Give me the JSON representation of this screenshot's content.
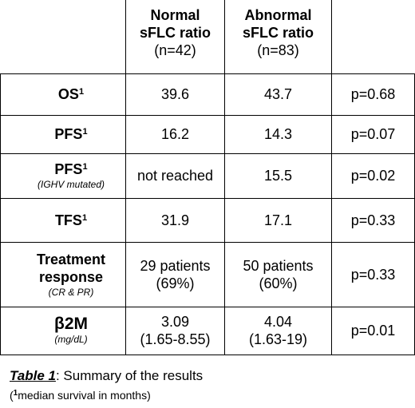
{
  "table": {
    "columns": [
      {
        "title_line1": "Normal",
        "title_line2": "sFLC ratio",
        "n": "(n=42)"
      },
      {
        "title_line1": "Abnormal",
        "title_line2": "sFLC ratio",
        "n": "(n=83)"
      }
    ],
    "rows": [
      {
        "label": "OS",
        "sup": "1",
        "note": "",
        "normal": "39.6",
        "abnormal": "43.7",
        "p": "p=0.68"
      },
      {
        "label": "PFS",
        "sup": "1",
        "note": "",
        "normal": "16.2",
        "abnormal": "14.3",
        "p": "p=0.07"
      },
      {
        "label": "PFS",
        "sup": "1",
        "note": "(IGHV mutated)",
        "normal": "not reached",
        "abnormal": "15.5",
        "p": "p=0.02"
      },
      {
        "label": "TFS",
        "sup": "1",
        "note": "",
        "normal": "31.9",
        "abnormal": "17.1",
        "p": "p=0.33"
      },
      {
        "label_line1": "Treatment",
        "label_line2": "response",
        "note": "(CR & PR)",
        "normal_line1": "29 patients",
        "normal_line2": "(69%)",
        "abnormal_line1": "50 patients",
        "abnormal_line2": "(60%)",
        "p": "p=0.33"
      },
      {
        "label": "β2M",
        "note": "(mg/dL)",
        "normal_line1": "3.09",
        "normal_line2": "(1.65-8.55)",
        "abnormal_line1": "4.04",
        "abnormal_line2": "(1.63-19)",
        "p": "p=0.01"
      }
    ]
  },
  "caption": {
    "ref": "Table 1",
    "text": ": Summary of the results"
  },
  "footnote": {
    "open": "(",
    "sup": "1",
    "text": "median survival in months)"
  }
}
